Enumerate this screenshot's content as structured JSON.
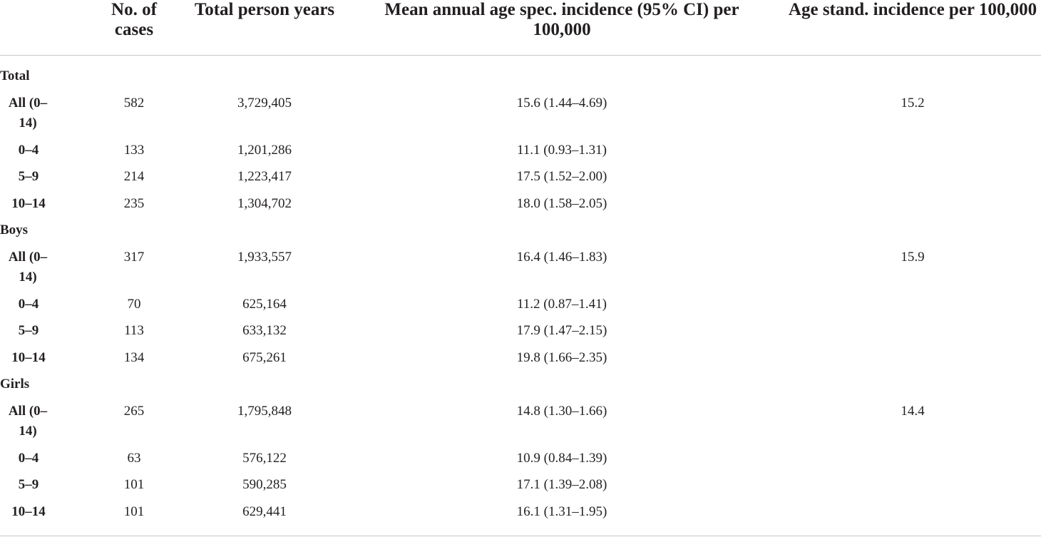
{
  "headers": {
    "cases": "No. of cases",
    "person_years": "Total person years",
    "mean_incidence": "Mean annual age spec. incidence (95% CI) per 100,000",
    "age_std": "Age stand. incidence per 100,000"
  },
  "groups": [
    {
      "label": "Total",
      "rows": [
        {
          "age": "All (0–14)",
          "cases": "582",
          "person_years": "3,729,405",
          "mean_incidence": "15.6 (1.44–4.69)",
          "age_std": "15.2"
        },
        {
          "age": "0–4",
          "cases": "133",
          "person_years": "1,201,286",
          "mean_incidence": "11.1 (0.93–1.31)",
          "age_std": ""
        },
        {
          "age": "5–9",
          "cases": "214",
          "person_years": "1,223,417",
          "mean_incidence": "17.5 (1.52–2.00)",
          "age_std": ""
        },
        {
          "age": "10–14",
          "cases": "235",
          "person_years": "1,304,702",
          "mean_incidence": "18.0 (1.58–2.05)",
          "age_std": ""
        }
      ]
    },
    {
      "label": "Boys",
      "rows": [
        {
          "age": "All (0–14)",
          "cases": "317",
          "person_years": "1,933,557",
          "mean_incidence": "16.4 (1.46–1.83)",
          "age_std": "15.9"
        },
        {
          "age": "0–4",
          "cases": "70",
          "person_years": "625,164",
          "mean_incidence": "11.2 (0.87–1.41)",
          "age_std": ""
        },
        {
          "age": "5–9",
          "cases": "113",
          "person_years": "633,132",
          "mean_incidence": "17.9 (1.47–2.15)",
          "age_std": ""
        },
        {
          "age": "10–14",
          "cases": "134",
          "person_years": "675,261",
          "mean_incidence": "19.8 (1.66–2.35)",
          "age_std": ""
        }
      ]
    },
    {
      "label": "Girls",
      "rows": [
        {
          "age": "All (0–14)",
          "cases": "265",
          "person_years": "1,795,848",
          "mean_incidence": "14.8 (1.30–1.66)",
          "age_std": "14.4"
        },
        {
          "age": "0–4",
          "cases": "63",
          "person_years": "576,122",
          "mean_incidence": "10.9 (0.84–1.39)",
          "age_std": ""
        },
        {
          "age": "5–9",
          "cases": "101",
          "person_years": "590,285",
          "mean_incidence": "17.1 (1.39–2.08)",
          "age_std": ""
        },
        {
          "age": "10–14",
          "cases": "101",
          "person_years": "629,441",
          "mean_incidence": "16.1 (1.31–1.95)",
          "age_std": ""
        }
      ]
    }
  ]
}
